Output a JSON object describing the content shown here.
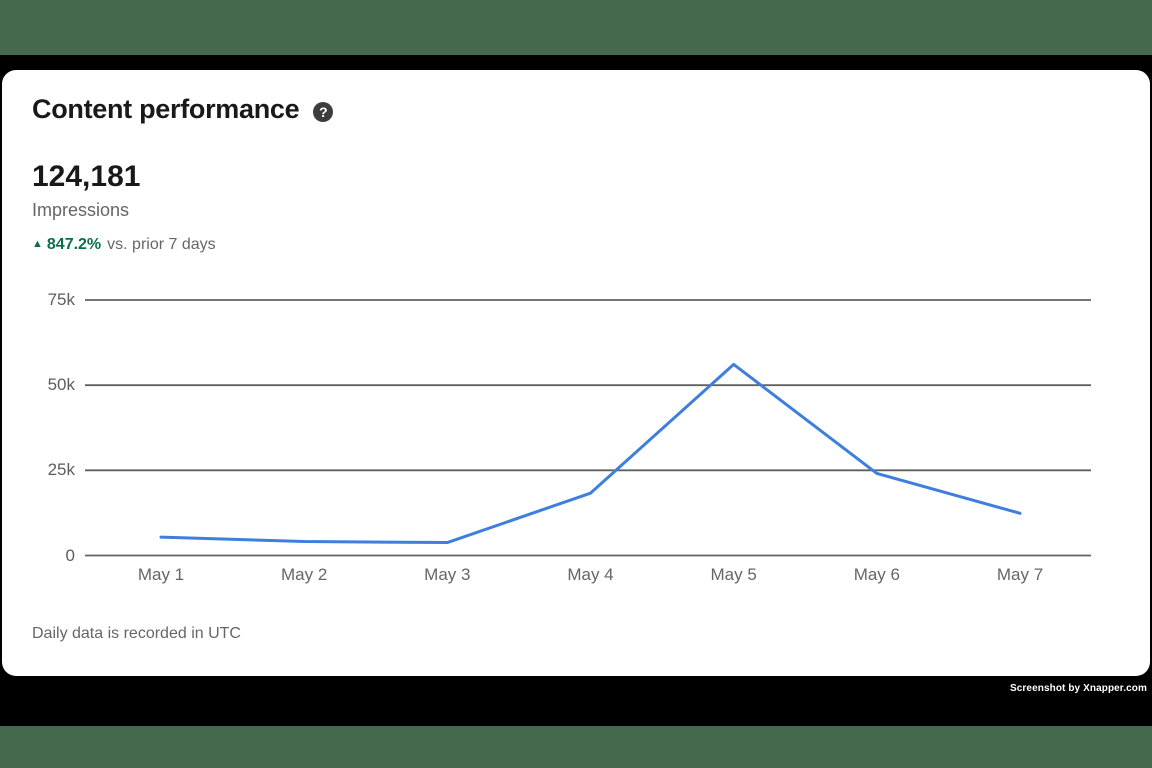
{
  "page": {
    "background_color": "#45694d",
    "frame_color": "#000000",
    "card_color": "#ffffff"
  },
  "header": {
    "title": "Content performance",
    "help_glyph": "?"
  },
  "metric": {
    "value": "124,181",
    "label": "Impressions"
  },
  "trend": {
    "direction": "up",
    "arrow_glyph": "▲",
    "percent": "847.2%",
    "comparison": "vs. prior 7 days",
    "color": "#0a6e4b"
  },
  "chart_data": {
    "type": "line",
    "x": [
      "May 1",
      "May 2",
      "May 3",
      "May 4",
      "May 5",
      "May 6",
      "May 7"
    ],
    "series": [
      {
        "name": "Impressions",
        "values": [
          5400,
          4100,
          3800,
          18300,
          56100,
          24100,
          12381
        ]
      }
    ],
    "y_ticks": [
      {
        "label": "75k",
        "value": 75000
      },
      {
        "label": "50k",
        "value": 50000
      },
      {
        "label": "25k",
        "value": 25000
      },
      {
        "label": "0",
        "value": 0
      }
    ],
    "ylim": [
      0,
      75000
    ],
    "grid": "horizontal",
    "legend": "none",
    "xlabel": "",
    "ylabel": "",
    "line_color": "#3e7edd",
    "grid_color": "#606060"
  },
  "footer": {
    "note": "Daily data is recorded in UTC"
  },
  "watermark": {
    "text": "Screenshot by Xnapper.com"
  }
}
